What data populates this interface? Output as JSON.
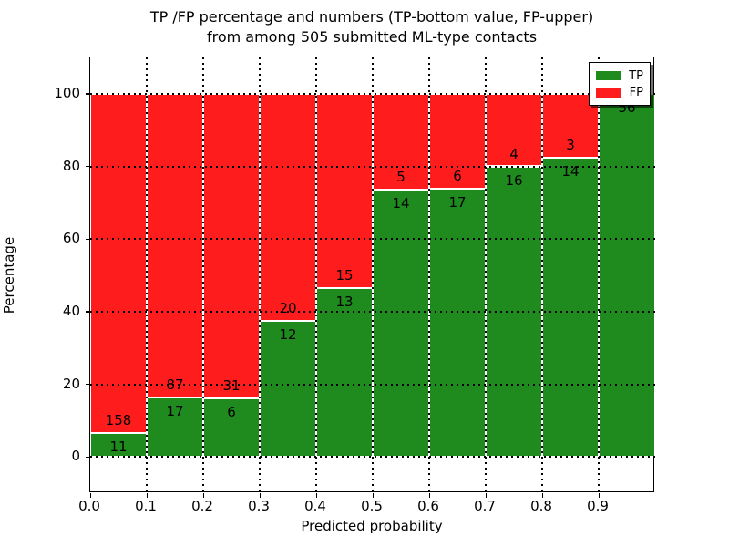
{
  "title": {
    "line1": "TP /FP percentage and numbers (TP-bottom value, FP-upper)",
    "line2": "from among 505 submitted ML-type contacts"
  },
  "axes": {
    "xlabel": "Predicted probability",
    "ylabel": "Percentage",
    "xtick_labels": [
      "0.0",
      "0.1",
      "0.2",
      "0.3",
      "0.4",
      "0.5",
      "0.6",
      "0.7",
      "0.8",
      "0.9"
    ],
    "ytick_values": [
      0,
      20,
      40,
      60,
      80,
      100
    ],
    "ylim": [
      -10,
      110
    ],
    "xlim": [
      0.0,
      1.0
    ]
  },
  "legend": {
    "items": [
      {
        "label": "TP",
        "color": "#1f8b1f"
      },
      {
        "label": "FP",
        "color": "#ff1c1c"
      }
    ]
  },
  "chart_data": {
    "type": "bar",
    "stacked": true,
    "normalized": "each bar scaled to 100%",
    "title": "TP /FP percentage and numbers (TP-bottom value, FP-upper) from among 505 submitted ML-type contacts",
    "xlabel": "Predicted probability",
    "ylabel": "Percentage",
    "total_contacts": 505,
    "bin_width": 0.1,
    "categories": [
      "0.0-0.1",
      "0.1-0.2",
      "0.2-0.3",
      "0.3-0.4",
      "0.4-0.5",
      "0.5-0.6",
      "0.6-0.7",
      "0.7-0.8",
      "0.8-0.9",
      "0.9-1.0"
    ],
    "series": [
      {
        "name": "TP",
        "color": "#1f8b1f",
        "counts": [
          11,
          17,
          6,
          12,
          13,
          14,
          17,
          16,
          14,
          56
        ]
      },
      {
        "name": "FP",
        "color": "#ff1c1c",
        "counts": [
          158,
          87,
          31,
          20,
          15,
          5,
          6,
          4,
          3,
          0
        ]
      }
    ],
    "tp_percent_of_bar": [
      6.5,
      16.3,
      16.2,
      37.5,
      46.4,
      73.7,
      73.9,
      80.0,
      82.4,
      100.0
    ],
    "grid": true,
    "legend_position": "upper right",
    "colors": {
      "tp": "#1f8b1f",
      "fp": "#ff1c1c",
      "background": "#ffffff",
      "grid": "#000000"
    }
  }
}
